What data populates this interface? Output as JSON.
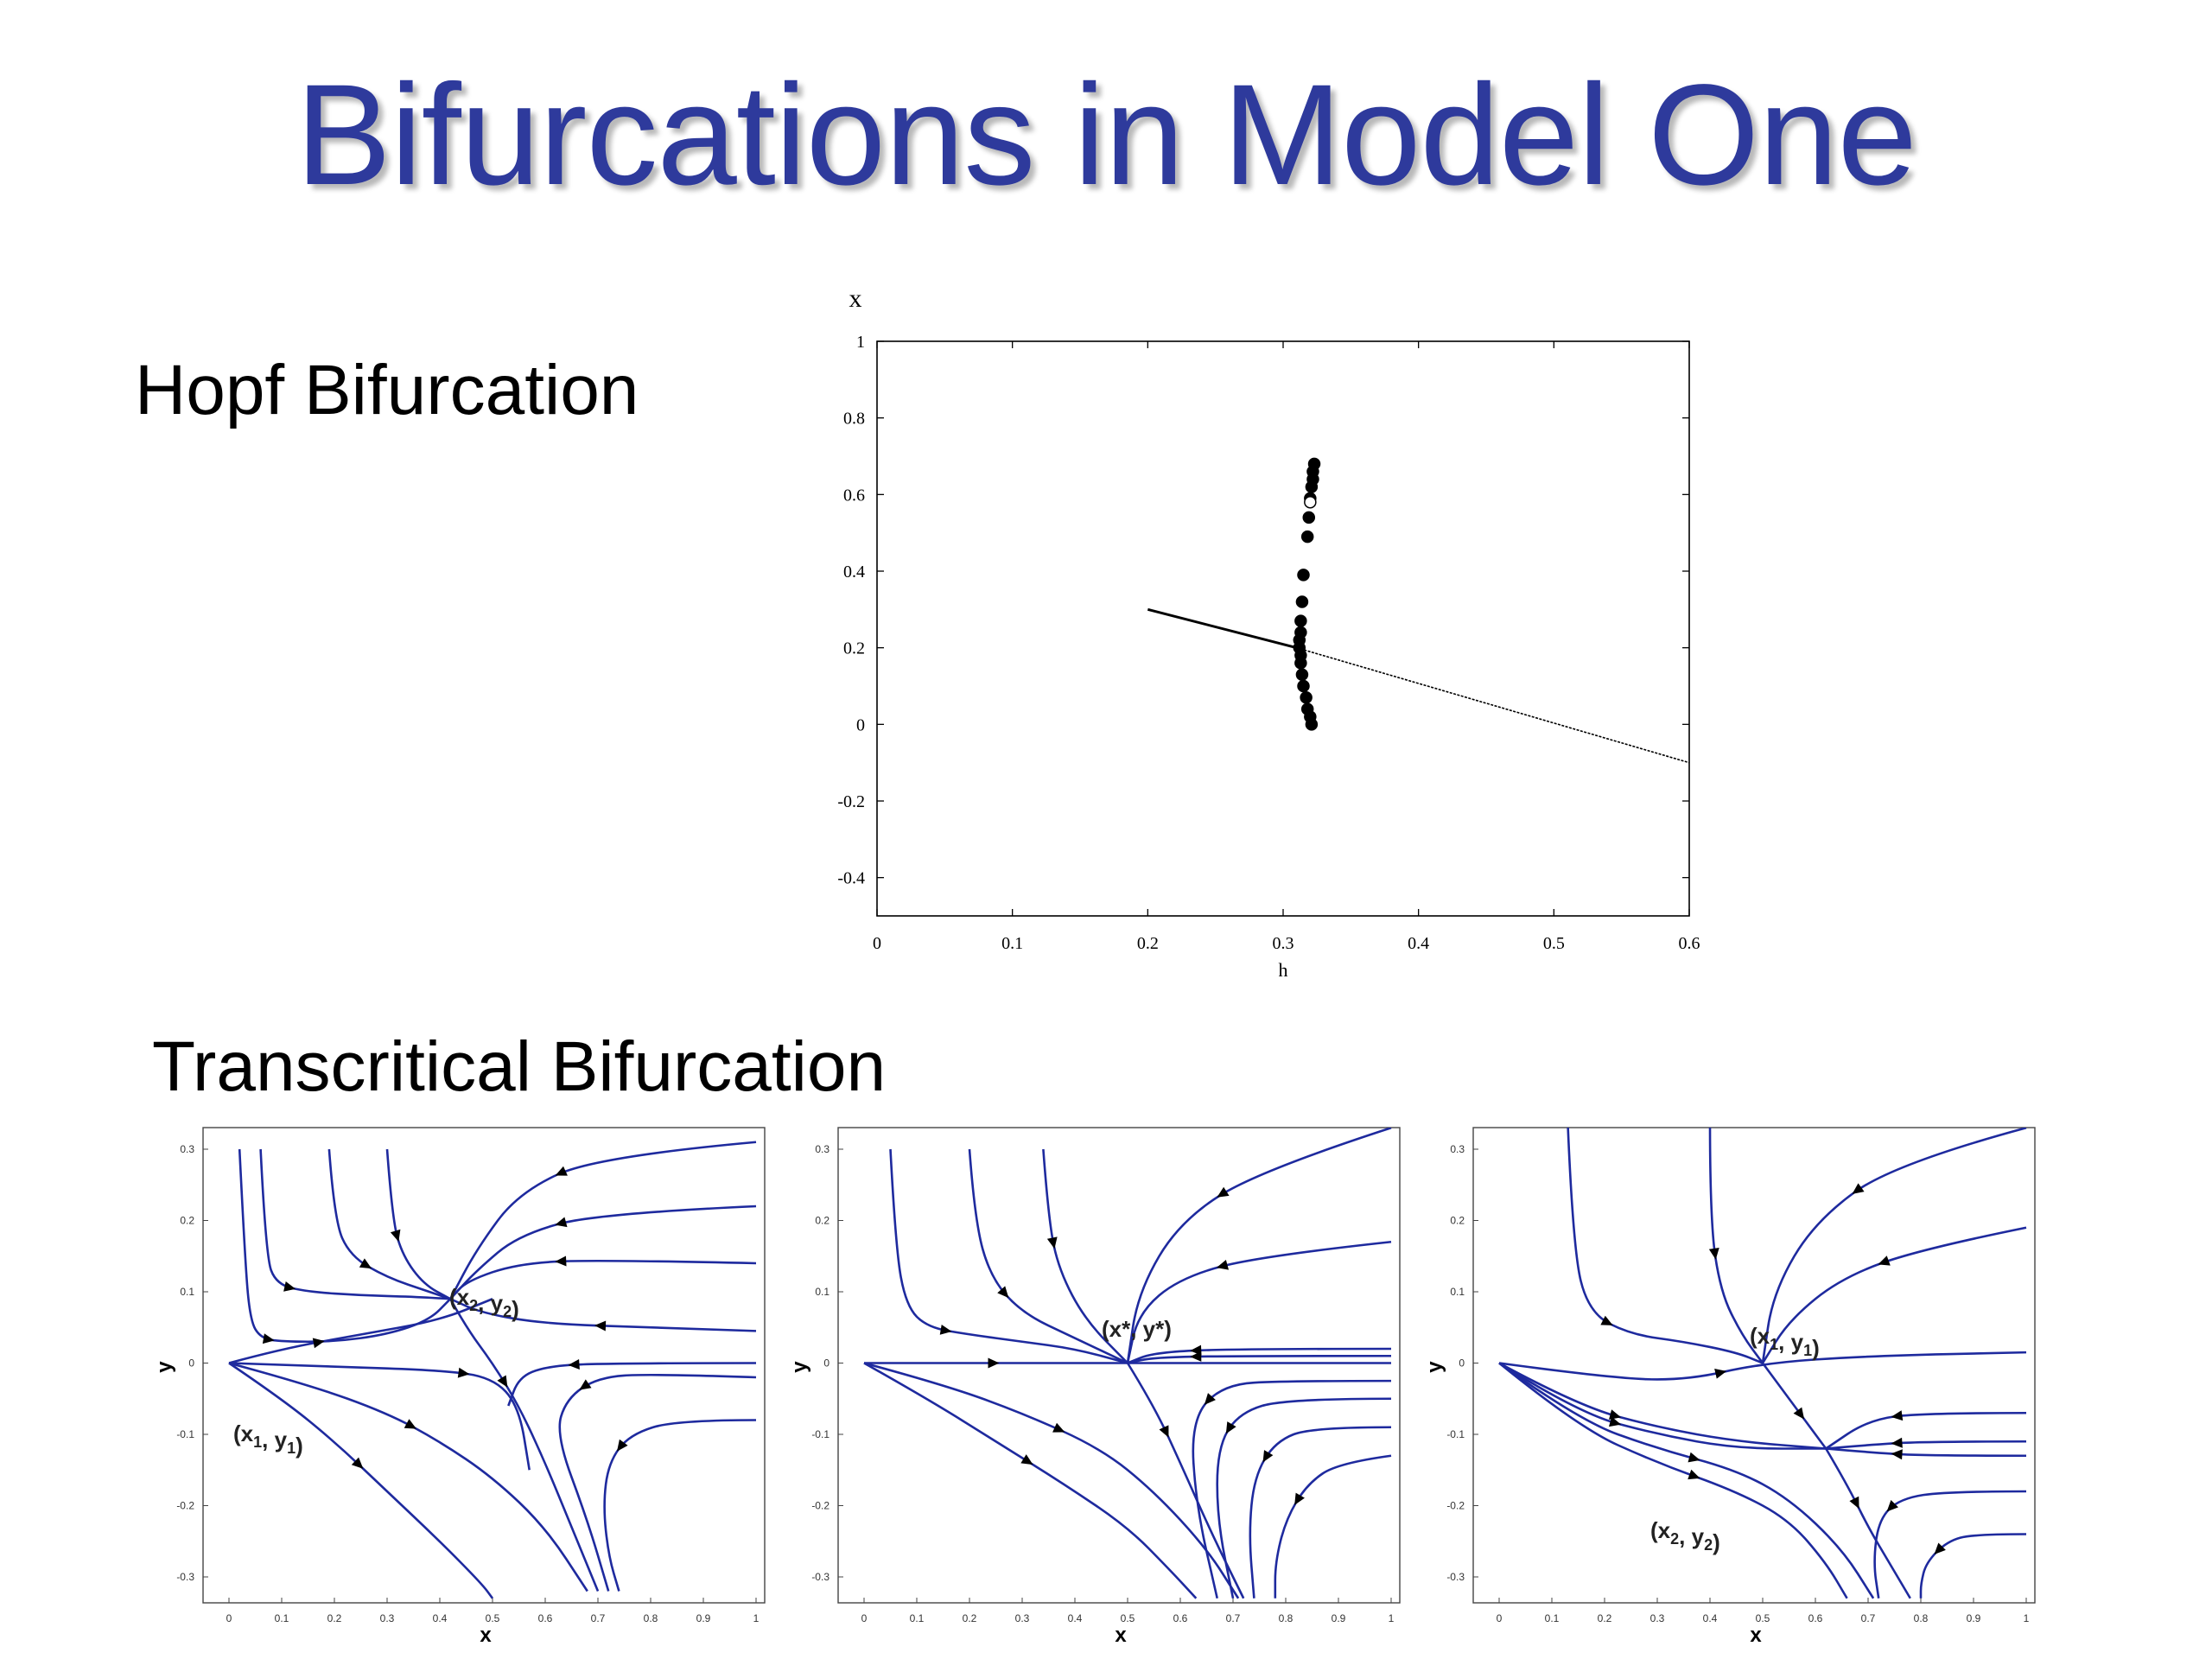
{
  "slide": {
    "title": "Bifurcations in Model One",
    "hopf_label": "Hopf Bifurcation",
    "transcritical_label": "Transcritical Bifurcation"
  },
  "colors": {
    "title": "#2e3a9c",
    "trajectory": "#1e2a9e",
    "arrow": "#000000",
    "ink": "#000000"
  },
  "chart_data": [
    {
      "type": "scatter",
      "xlabel": "h",
      "ylabel": "x",
      "xlim": [
        0,
        0.6
      ],
      "ylim": [
        -0.5,
        1
      ],
      "xticks": [
        "0",
        "0.1",
        "0.2",
        "0.3",
        "0.4",
        "0.5",
        "0.6"
      ],
      "yticks": [
        "1",
        "0.8",
        "0.6",
        "0.4",
        "0.2",
        "0",
        "-0.2",
        "-0.4"
      ],
      "series": [
        {
          "style": "line",
          "x": [
            0.2,
            0.31
          ],
          "y": [
            0.3,
            0.2
          ]
        },
        {
          "style": "line-dotted",
          "x": [
            0.31,
            0.6
          ],
          "y": [
            0.2,
            -0.1
          ]
        },
        {
          "style": "filled-dots",
          "x": [
            0.323,
            0.322,
            0.322,
            0.321,
            0.32,
            0.319,
            0.318,
            0.315,
            0.314,
            0.313,
            0.313,
            0.312,
            0.312,
            0.313,
            0.313,
            0.314,
            0.315,
            0.317,
            0.318,
            0.32,
            0.321
          ],
          "y": [
            0.68,
            0.66,
            0.64,
            0.62,
            0.59,
            0.54,
            0.49,
            0.39,
            0.32,
            0.27,
            0.24,
            0.22,
            0.2,
            0.18,
            0.16,
            0.13,
            0.1,
            0.07,
            0.04,
            0.02,
            0.0
          ]
        },
        {
          "style": "open-dots",
          "x": [
            0.32
          ],
          "y": [
            0.58
          ]
        }
      ]
    },
    {
      "type": "line",
      "xlabel": "x",
      "ylabel": "y",
      "xlim": [
        0,
        1
      ],
      "ylim": [
        -0.3,
        0.3
      ],
      "xticks": [
        "0",
        "0.1",
        "0.2",
        "0.3",
        "0.4",
        "0.5",
        "0.6",
        "0.7",
        "0.8",
        "0.9",
        "1"
      ],
      "yticks": [
        "0.3",
        "0.2",
        "0.1",
        "0",
        "-0.1",
        "-0.2",
        "-0.3"
      ],
      "annotations": [
        {
          "main": "(x",
          "sub": "2",
          "mid": ", y",
          "sub2": "2",
          "end": ")"
        },
        {
          "main": "(x",
          "sub": "1",
          "mid": ", y",
          "sub2": "1",
          "end": ")"
        }
      ],
      "equilibria": [
        {
          "x": 0,
          "y": 0
        },
        {
          "x": 0.42,
          "y": 0.09
        }
      ],
      "series": [
        {
          "x": [
            0.02,
            0.03,
            0.04,
            0.06,
            0.1,
            0.2,
            0.3,
            0.38,
            0.42
          ],
          "y": [
            0.3,
            0.15,
            0.06,
            0.035,
            0.03,
            0.03,
            0.04,
            0.06,
            0.09
          ]
        },
        {
          "x": [
            0.06,
            0.07,
            0.09,
            0.15,
            0.25,
            0.35,
            0.42
          ],
          "y": [
            0.3,
            0.15,
            0.11,
            0.1,
            0.095,
            0.093,
            0.09
          ]
        },
        {
          "x": [
            0.19,
            0.2,
            0.23,
            0.3,
            0.38,
            0.42
          ],
          "y": [
            0.3,
            0.2,
            0.15,
            0.12,
            0.1,
            0.09
          ]
        },
        {
          "x": [
            0.3,
            0.31,
            0.33,
            0.37,
            0.42
          ],
          "y": [
            0.3,
            0.2,
            0.15,
            0.11,
            0.09
          ]
        },
        {
          "x": [
            1.0,
            0.7,
            0.55,
            0.47,
            0.42
          ],
          "y": [
            0.31,
            0.29,
            0.24,
            0.16,
            0.09
          ]
        },
        {
          "x": [
            1.0,
            0.7,
            0.55,
            0.47,
            0.42
          ],
          "y": [
            0.22,
            0.21,
            0.18,
            0.13,
            0.09
          ]
        },
        {
          "x": [
            1.0,
            0.7,
            0.55,
            0.45,
            0.42
          ],
          "y": [
            0.14,
            0.145,
            0.14,
            0.115,
            0.09
          ]
        },
        {
          "x": [
            1.0,
            0.8,
            0.6,
            0.48,
            0.42
          ],
          "y": [
            0.045,
            0.05,
            0.055,
            0.07,
            0.09
          ]
        },
        {
          "x": [
            0.42,
            0.45,
            0.5,
            0.55,
            0.6,
            0.65,
            0.7
          ],
          "y": [
            0.09,
            0.05,
            0.0,
            -0.06,
            -0.14,
            -0.23,
            -0.32
          ]
        },
        {
          "x": [
            0.0,
            0.1,
            0.25,
            0.4,
            0.5
          ],
          "y": [
            0.0,
            0.02,
            0.04,
            0.06,
            0.09
          ]
        },
        {
          "x": [
            0.0,
            0.2,
            0.4,
            0.5,
            0.55,
            0.57
          ],
          "y": [
            0.0,
            -0.005,
            -0.01,
            -0.02,
            -0.06,
            -0.15
          ]
        },
        {
          "x": [
            1.0,
            0.7,
            0.6,
            0.55,
            0.53
          ],
          "y": [
            0.0,
            0.0,
            -0.005,
            -0.02,
            -0.06
          ]
        },
        {
          "x": [
            0.0,
            0.15,
            0.3,
            0.4,
            0.5,
            0.6,
            0.68
          ],
          "y": [
            0.0,
            -0.03,
            -0.07,
            -0.11,
            -0.16,
            -0.23,
            -0.32
          ]
        },
        {
          "x": [
            0.0,
            0.1,
            0.2,
            0.3,
            0.4,
            0.48,
            0.5
          ],
          "y": [
            0.0,
            -0.05,
            -0.11,
            -0.18,
            -0.25,
            -0.31,
            -0.33
          ]
        },
        {
          "x": [
            1.0,
            0.8,
            0.7,
            0.64,
            0.62,
            0.68,
            0.72
          ],
          "y": [
            -0.02,
            -0.015,
            -0.02,
            -0.05,
            -0.1,
            -0.22,
            -0.32
          ]
        },
        {
          "x": [
            1.0,
            0.85,
            0.76,
            0.72,
            0.71,
            0.72,
            0.74
          ],
          "y": [
            -0.08,
            -0.08,
            -0.1,
            -0.14,
            -0.2,
            -0.27,
            -0.32
          ]
        }
      ]
    },
    {
      "type": "line",
      "xlabel": "x",
      "ylabel": "y",
      "xlim": [
        0,
        1
      ],
      "ylim": [
        -0.3,
        0.3
      ],
      "xticks": [
        "0",
        "0.1",
        "0.2",
        "0.3",
        "0.4",
        "0.5",
        "0.6",
        "0.7",
        "0.8",
        "0.9",
        "1"
      ],
      "yticks": [
        "0.3",
        "0.2",
        "0.1",
        "0",
        "-0.1",
        "-0.2",
        "-0.3"
      ],
      "annotations": [
        {
          "main": "(x*, y*)",
          "sub": "",
          "mid": "",
          "sub2": "",
          "end": ""
        }
      ],
      "equilibria": [
        {
          "x": 0,
          "y": 0
        },
        {
          "x": 0.5,
          "y": 0
        }
      ],
      "series": [
        {
          "x": [
            0.0,
            0.5,
            1.0
          ],
          "y": [
            0.0,
            0.0,
            0.0
          ]
        },
        {
          "x": [
            0.05,
            0.06,
            0.08,
            0.12,
            0.2,
            0.3,
            0.4,
            0.5
          ],
          "y": [
            0.3,
            0.16,
            0.08,
            0.05,
            0.04,
            0.03,
            0.02,
            0.0
          ]
        },
        {
          "x": [
            0.2,
            0.21,
            0.24,
            0.3,
            0.4,
            0.5
          ],
          "y": [
            0.3,
            0.2,
            0.12,
            0.07,
            0.035,
            0.0
          ]
        },
        {
          "x": [
            0.34,
            0.35,
            0.37,
            0.42,
            0.5
          ],
          "y": [
            0.3,
            0.2,
            0.13,
            0.06,
            0.0
          ]
        },
        {
          "x": [
            1.0,
            0.75,
            0.6,
            0.52,
            0.5
          ],
          "y": [
            0.33,
            0.27,
            0.2,
            0.1,
            0.0
          ]
        },
        {
          "x": [
            1.0,
            0.75,
            0.6,
            0.52,
            0.5
          ],
          "y": [
            0.17,
            0.15,
            0.12,
            0.07,
            0.0
          ]
        },
        {
          "x": [
            1.0,
            0.7,
            0.55,
            0.5
          ],
          "y": [
            0.02,
            0.02,
            0.015,
            0.0
          ]
        },
        {
          "x": [
            1.0,
            0.7,
            0.55,
            0.5
          ],
          "y": [
            0.01,
            0.01,
            0.008,
            0.0
          ]
        },
        {
          "x": [
            0.5,
            0.55,
            0.6,
            0.66,
            0.72
          ],
          "y": [
            0.0,
            -0.06,
            -0.14,
            -0.24,
            -0.33
          ]
        },
        {
          "x": [
            0.0,
            0.15,
            0.3,
            0.45,
            0.55,
            0.65,
            0.71
          ],
          "y": [
            0.0,
            -0.03,
            -0.07,
            -0.12,
            -0.18,
            -0.26,
            -0.33
          ]
        },
        {
          "x": [
            0.0,
            0.12,
            0.25,
            0.38,
            0.5,
            0.58,
            0.63
          ],
          "y": [
            0.0,
            -0.05,
            -0.11,
            -0.17,
            -0.23,
            -0.29,
            -0.33
          ]
        },
        {
          "x": [
            1.0,
            0.8,
            0.68,
            0.62,
            0.63,
            0.67
          ],
          "y": [
            -0.025,
            -0.025,
            -0.03,
            -0.08,
            -0.2,
            -0.33
          ]
        },
        {
          "x": [
            1.0,
            0.8,
            0.71,
            0.67,
            0.67,
            0.7
          ],
          "y": [
            -0.05,
            -0.05,
            -0.07,
            -0.12,
            -0.22,
            -0.33
          ]
        },
        {
          "x": [
            1.0,
            0.85,
            0.78,
            0.74,
            0.73,
            0.74
          ],
          "y": [
            -0.09,
            -0.09,
            -0.11,
            -0.16,
            -0.24,
            -0.33
          ]
        },
        {
          "x": [
            1.0,
            0.9,
            0.84,
            0.8,
            0.78,
            0.78
          ],
          "y": [
            -0.13,
            -0.14,
            -0.17,
            -0.22,
            -0.28,
            -0.33
          ]
        }
      ]
    },
    {
      "type": "line",
      "xlabel": "x",
      "ylabel": "y",
      "xlim": [
        0,
        1
      ],
      "ylim": [
        -0.3,
        0.3
      ],
      "xticks": [
        "0",
        "0.1",
        "0.2",
        "0.3",
        "0.4",
        "0.5",
        "0.6",
        "0.7",
        "0.8",
        "0.9",
        "1"
      ],
      "yticks": [
        "0.3",
        "0.2",
        "0.1",
        "0",
        "-0.1",
        "-0.2",
        "-0.3"
      ],
      "annotations": [
        {
          "main": "(x",
          "sub": "1",
          "mid": ", y",
          "sub2": "1",
          "end": ")"
        },
        {
          "main": "(x",
          "sub": "2",
          "mid": ", y",
          "sub2": "2",
          "end": ")"
        }
      ],
      "equilibria": [
        {
          "x": 0,
          "y": 0
        },
        {
          "x": 0.5,
          "y": 0
        },
        {
          "x": 0.62,
          "y": -0.12
        }
      ],
      "series": [
        {
          "x": [
            0.0,
            0.2,
            0.35,
            0.5,
            0.7,
            1.0
          ],
          "y": [
            0.0,
            -0.02,
            -0.025,
            0.0,
            0.01,
            0.015
          ]
        },
        {
          "x": [
            0.13,
            0.14,
            0.17,
            0.25,
            0.35,
            0.45,
            0.5
          ],
          "y": [
            0.34,
            0.16,
            0.07,
            0.04,
            0.03,
            0.015,
            0.0
          ]
        },
        {
          "x": [
            0.4,
            0.4,
            0.42,
            0.46,
            0.5
          ],
          "y": [
            0.34,
            0.2,
            0.1,
            0.04,
            0.0
          ]
        },
        {
          "x": [
            1.0,
            0.75,
            0.6,
            0.52,
            0.5
          ],
          "y": [
            0.33,
            0.28,
            0.2,
            0.1,
            0.0
          ]
        },
        {
          "x": [
            1.0,
            0.8,
            0.65,
            0.55,
            0.5
          ],
          "y": [
            0.19,
            0.16,
            0.12,
            0.06,
            0.0
          ]
        },
        {
          "x": [
            0.5,
            0.55,
            0.6,
            0.62
          ],
          "y": [
            0.0,
            -0.05,
            -0.1,
            -0.12
          ]
        },
        {
          "x": [
            0.62,
            0.66,
            0.7,
            0.74,
            0.78
          ],
          "y": [
            -0.12,
            -0.17,
            -0.23,
            -0.28,
            -0.33
          ]
        },
        {
          "x": [
            1.0,
            0.8,
            0.7,
            0.62
          ],
          "y": [
            -0.07,
            -0.07,
            -0.08,
            -0.12
          ]
        },
        {
          "x": [
            1.0,
            0.8,
            0.7,
            0.62
          ],
          "y": [
            -0.11,
            -0.11,
            -0.115,
            -0.12
          ]
        },
        {
          "x": [
            1.0,
            0.8,
            0.7,
            0.62
          ],
          "y": [
            -0.13,
            -0.13,
            -0.125,
            -0.12
          ]
        },
        {
          "x": [
            0.0,
            0.15,
            0.3,
            0.45,
            0.62
          ],
          "y": [
            0.0,
            -0.06,
            -0.09,
            -0.11,
            -0.12
          ]
        },
        {
          "x": [
            0.0,
            0.15,
            0.3,
            0.45,
            0.62
          ],
          "y": [
            0.0,
            -0.07,
            -0.1,
            -0.12,
            -0.12
          ]
        },
        {
          "x": [
            0.0,
            0.15,
            0.3,
            0.45,
            0.55,
            0.65,
            0.71
          ],
          "y": [
            0.0,
            -0.08,
            -0.12,
            -0.15,
            -0.19,
            -0.26,
            -0.33
          ]
        },
        {
          "x": [
            0.0,
            0.15,
            0.3,
            0.45,
            0.55,
            0.62,
            0.66
          ],
          "y": [
            0.0,
            -0.09,
            -0.14,
            -0.18,
            -0.22,
            -0.28,
            -0.33
          ]
        },
        {
          "x": [
            1.0,
            0.85,
            0.76,
            0.72,
            0.71,
            0.72
          ],
          "y": [
            -0.18,
            -0.18,
            -0.19,
            -0.22,
            -0.28,
            -0.33
          ]
        },
        {
          "x": [
            1.0,
            0.9,
            0.85,
            0.81,
            0.8,
            0.8
          ],
          "y": [
            -0.24,
            -0.24,
            -0.25,
            -0.28,
            -0.31,
            -0.33
          ]
        }
      ]
    }
  ]
}
